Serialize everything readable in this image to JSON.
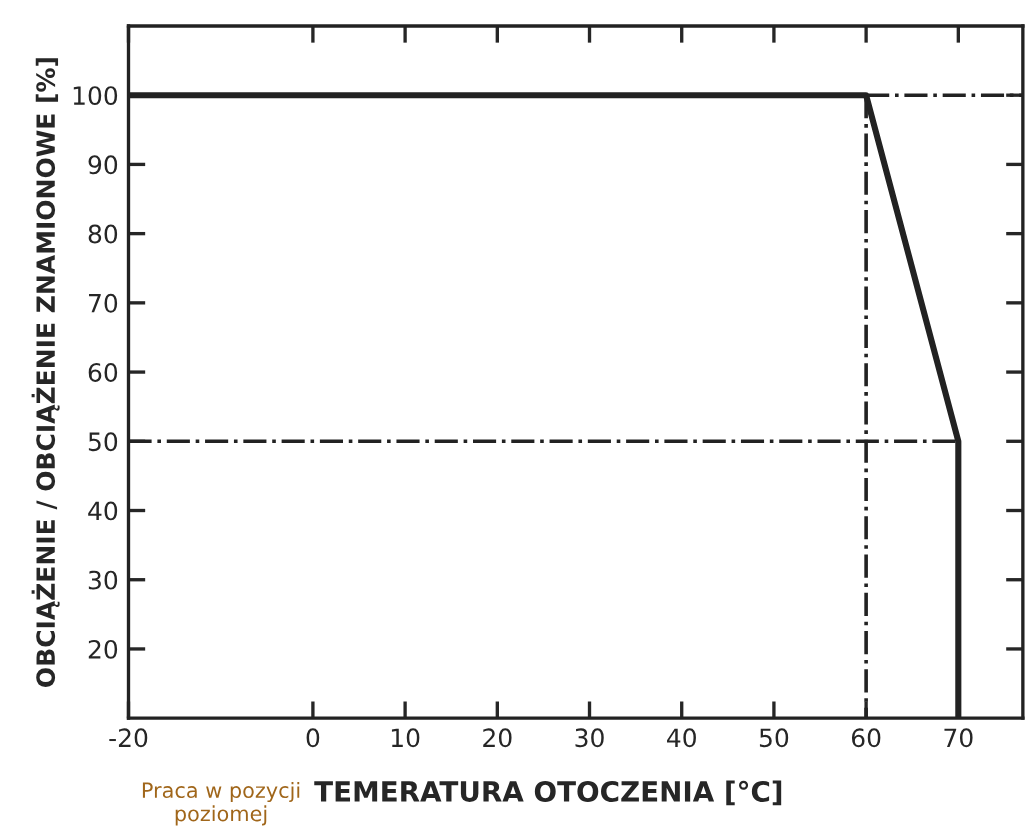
{
  "chart_data": {
    "type": "line",
    "xlabel": "TEMERATURA OTOCZENIA [°C]",
    "ylabel": "OBCIĄŻENIE / OBCIĄŻENIE ZNAMIONOWE [%]",
    "annotations": [
      "Praca w pozycji\npoziomej"
    ],
    "series": [
      {
        "color": "#222222",
        "x": [
          -20,
          60,
          70,
          70
        ],
        "values": [
          100,
          100,
          50,
          10
        ],
        "line_style": "solid"
      },
      {
        "color": "#222222",
        "x": [
          60,
          77
        ],
        "values": [
          100,
          100
        ],
        "line_style": "dashed"
      },
      {
        "color": "#222222",
        "x": [
          60,
          60
        ],
        "values": [
          100,
          10
        ],
        "line_style": "dashed"
      },
      {
        "color": "#222222",
        "x": [
          -20,
          70
        ],
        "values": [
          50,
          50
        ],
        "line_style": "dashed"
      }
    ],
    "xlim": [
      -20,
      77
    ],
    "xticks": [
      -20,
      0,
      10,
      20,
      30,
      40,
      50,
      60,
      70
    ],
    "ylim": [
      10,
      110
    ],
    "yticks": [
      20,
      30,
      40,
      50,
      60,
      70,
      80,
      90,
      100
    ],
    "grid": false,
    "legend": false
  }
}
